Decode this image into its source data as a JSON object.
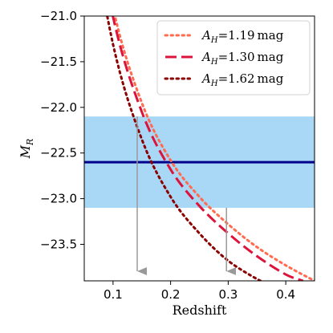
{
  "chart_data": {
    "type": "line",
    "xlabel": "Redshift",
    "ylabel": "M_R",
    "xlim": [
      0.05,
      0.45
    ],
    "ylim": [
      -21.0,
      -23.9
    ],
    "y_axis_inverted": true,
    "x_ticks": [
      0.1,
      0.2,
      0.3,
      0.4
    ],
    "x_tick_labels": [
      "0.1",
      "0.2",
      "0.3",
      "0.4"
    ],
    "y_ticks": [
      -21.0,
      -21.5,
      -22.0,
      -22.5,
      -23.0,
      -23.5
    ],
    "y_tick_labels": [
      "−21.0",
      "−21.5",
      "−22.0",
      "−22.5",
      "−23.0",
      "−23.5"
    ],
    "grid": false,
    "legend_position": "top-right",
    "band": {
      "y_low": -22.1,
      "y_high": -23.1,
      "color": "#a8d8f5"
    },
    "hline": {
      "y": -22.6,
      "color": "#00008b"
    },
    "series": [
      {
        "name": "A_H=1.19 mag",
        "label_main": "A",
        "label_sub": "H",
        "label_rest": "=1.19 mag",
        "style": "dotted",
        "color": "#ff6b50",
        "x": [
          0.05,
          0.1,
          0.15,
          0.2,
          0.25,
          0.3,
          0.35,
          0.4,
          0.45
        ],
        "y": [
          -19.15,
          -20.91,
          -21.95,
          -22.58,
          -22.98,
          -23.28,
          -23.53,
          -23.73,
          -23.9
        ]
      },
      {
        "name": "A_H=1.30 mag",
        "label_main": "A",
        "label_sub": "H",
        "label_rest": "=1.30 mag",
        "style": "dashed",
        "color": "#dc143c",
        "x": [
          0.05,
          0.1,
          0.15,
          0.2,
          0.25,
          0.3,
          0.35,
          0.4,
          0.43
        ],
        "y": [
          -19.25,
          -21.01,
          -22.05,
          -22.68,
          -23.08,
          -23.38,
          -23.63,
          -23.83,
          -23.9
        ]
      },
      {
        "name": "A_H=1.62 mag",
        "label_main": "A",
        "label_sub": "H",
        "label_rest": "=1.62 mag",
        "style": "dotted",
        "color": "#8b0000",
        "x": [
          0.05,
          0.1,
          0.15,
          0.2,
          0.25,
          0.3,
          0.35,
          0.36
        ],
        "y": [
          -19.55,
          -21.31,
          -22.35,
          -22.98,
          -23.38,
          -23.68,
          -23.88,
          -23.9
        ]
      }
    ],
    "arrows": [
      {
        "x": 0.142,
        "y_from": -22.1,
        "y_to": -23.9,
        "color": "#999999"
      },
      {
        "x": 0.297,
        "y_from": -23.1,
        "y_to": -23.9,
        "color": "#999999"
      }
    ]
  }
}
